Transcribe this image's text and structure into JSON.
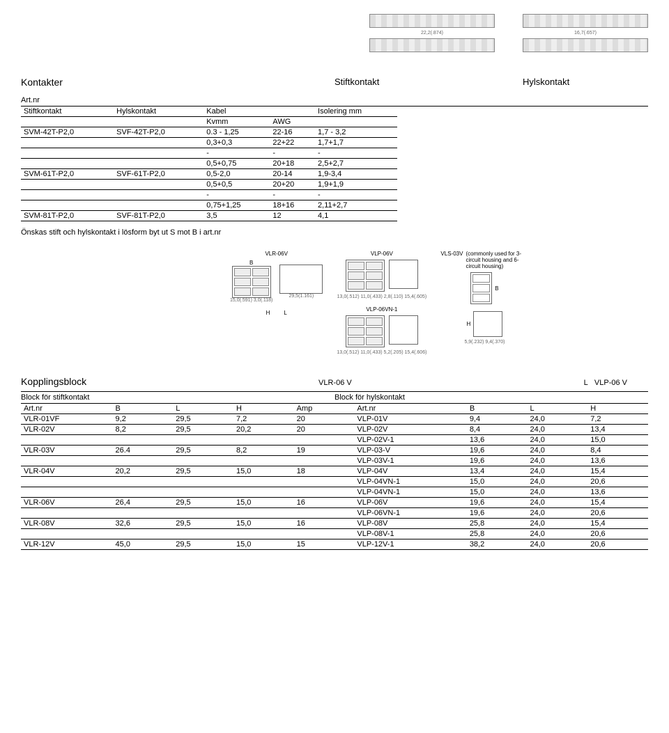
{
  "top_labels": {
    "stift": "Stiftkontakt",
    "hyls": "Hylskontakt"
  },
  "top_dims": {
    "left": "22,2(.874)",
    "right": "16,7(.657)"
  },
  "section1_title": "Kontakter",
  "artnr_label": "Art.nr",
  "table1": {
    "headers": [
      "Stiftkontakt",
      "Hylskontakt",
      "Kabel",
      "",
      "Isolering mm"
    ],
    "subheaders": [
      "",
      "",
      "Kvmm",
      "AWG",
      ""
    ],
    "rows": [
      [
        "SVM-42T-P2,0",
        "SVF-42T-P2,0",
        "0.3 - 1,25",
        "22-16",
        "1,7 - 3,2"
      ],
      [
        "",
        "",
        "0,3+0,3",
        "22+22",
        "1,7+1,7"
      ],
      [
        "",
        "",
        "-",
        "-",
        "-"
      ],
      [
        "",
        "",
        "0,5+0,75",
        "20+18",
        "2,5+2,7"
      ],
      [
        "SVM-61T-P2,0",
        "SVF-61T-P2,0",
        "0,5-2,0",
        "20-14",
        "1,9-3,4"
      ],
      [
        "",
        "",
        "0,5+0,5",
        "20+20",
        "1,9+1,9"
      ],
      [
        "",
        "",
        "-",
        "-",
        "-"
      ],
      [
        "",
        "",
        "0,75+1,25",
        "18+16",
        "2,11+2,7"
      ],
      [
        "SVM-81T-P2,0",
        "SVF-81T-P2,0",
        "3,5",
        "12",
        "4,1"
      ]
    ]
  },
  "note_text": "Önskas stift och hylskontakt i lösform byt ut S mot B i art.nr",
  "mid_labels": {
    "vlr06v": "VLR-06V",
    "vlp06v": "VLP-06V",
    "vls03v": "VLS-03V",
    "vls_note": "(commonly used for 3-circuit housing and 6-circuit housing)",
    "vlp06vn1": "VLP-06VN-1",
    "B": "B",
    "H": "H",
    "L": "L"
  },
  "kopplings": {
    "title": "Kopplingsblock",
    "mid1": "VLR-06 V",
    "mid2": "VLP-06 V"
  },
  "block_headers": {
    "left": "Block för stiftkontakt",
    "right": "Block för hylskontakt"
  },
  "table2": {
    "headers_left": [
      "Art.nr",
      "B",
      "L",
      "H",
      "Amp"
    ],
    "headers_right": [
      "Art.nr",
      "B",
      "L",
      "H"
    ],
    "rows": [
      [
        "VLR-01VF",
        "9,2",
        "29,5",
        "7,2",
        "20",
        "VLP-01V",
        "9,4",
        "24,0",
        "7,2"
      ],
      [
        "VLR-02V",
        "8,2",
        "29,5",
        "20,2",
        "20",
        "VLP-02V",
        "8,4",
        "24,0",
        "13,4"
      ],
      [
        "",
        "",
        "",
        "",
        "",
        "VLP-02V-1",
        "13,6",
        "24,0",
        "15,0"
      ],
      [
        "VLR-03V",
        "26.4",
        "29,5",
        "8,2",
        "19",
        "VLP-03-V",
        "19,6",
        "24,0",
        "8,4"
      ],
      [
        "",
        "",
        "",
        "",
        "",
        "VLP-03V-1",
        "19,6",
        "24,0",
        "13,6"
      ],
      [
        "VLR-04V",
        "20,2",
        "29,5",
        "15,0",
        "18",
        "VLP-04V",
        "13,4",
        "24,0",
        "15,4"
      ],
      [
        "",
        "",
        "",
        "",
        "",
        "VLP-04VN-1",
        "15,0",
        "24,0",
        "20,6"
      ],
      [
        "",
        "",
        "",
        "",
        "",
        "VLP-04VN-1",
        "15,0",
        "24,0",
        "13,6"
      ],
      [
        "VLR-06V",
        "26,4",
        "29,5",
        "15,0",
        "16",
        "VLP-06V",
        "19,6",
        "24,0",
        "15,4"
      ],
      [
        "",
        "",
        "",
        "",
        "",
        "VLP-06VN-1",
        "19,6",
        "24,0",
        "20,6"
      ],
      [
        "VLR-08V",
        "32,6",
        "29,5",
        "15,0",
        "16",
        "VLP-08V",
        "25,8",
        "24,0",
        "15,4"
      ],
      [
        "",
        "",
        "",
        "",
        "",
        "VLP-08V-1",
        "25,8",
        "24,0",
        "20,6"
      ],
      [
        "VLR-12V",
        "45,0",
        "29,5",
        "15,0",
        "15",
        "VLP-12V-1",
        "38,2",
        "24,0",
        "20,6"
      ]
    ]
  }
}
